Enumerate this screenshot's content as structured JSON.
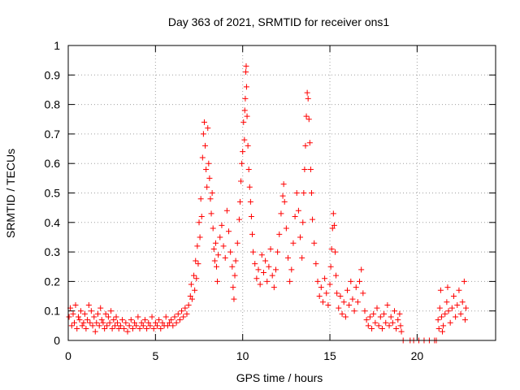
{
  "chart_data": {
    "type": "scatter",
    "title": "Day 363 of 2021, SRMTID for receiver ons1",
    "xlabel": "GPS time / hours",
    "ylabel": "SRMTID / TECUs",
    "xlim": [
      0,
      24.5
    ],
    "ylim": [
      0,
      1
    ],
    "xticks": [
      0,
      5,
      10,
      15,
      20
    ],
    "yticks": [
      0,
      0.1,
      0.2,
      0.3,
      0.4,
      0.5,
      0.6,
      0.7,
      0.8,
      0.9,
      1
    ],
    "xtick_labels": [
      "0",
      "5",
      "10",
      "15",
      "20"
    ],
    "ytick_labels": [
      "0",
      "0.1",
      "0.2",
      "0.3",
      "0.4",
      "0.5",
      "0.6",
      "0.7",
      "0.8",
      "0.9",
      "1"
    ],
    "grid": true,
    "legend": "none",
    "marker": "+",
    "color": "#ff0000",
    "series": [
      {
        "name": "SRMTID ons1",
        "points": [
          [
            0.05,
            0.08
          ],
          [
            0.12,
            0.11
          ],
          [
            0.2,
            0.05
          ],
          [
            0.28,
            0.09
          ],
          [
            0.35,
            0.06
          ],
          [
            0.42,
            0.12
          ],
          [
            0.5,
            0.04
          ],
          [
            0.58,
            0.08
          ],
          [
            0.65,
            0.07
          ],
          [
            0.72,
            0.1
          ],
          [
            0.8,
            0.05
          ],
          [
            0.88,
            0.06
          ],
          [
            0.95,
            0.09
          ],
          [
            1.02,
            0.04
          ],
          [
            1.1,
            0.07
          ],
          [
            1.18,
            0.12
          ],
          [
            1.25,
            0.06
          ],
          [
            1.32,
            0.1
          ],
          [
            1.4,
            0.05
          ],
          [
            1.48,
            0.08
          ],
          [
            1.55,
            0.03
          ],
          [
            1.62,
            0.06
          ],
          [
            1.7,
            0.09
          ],
          [
            1.78,
            0.05
          ],
          [
            1.85,
            0.11
          ],
          [
            1.92,
            0.07
          ],
          [
            2.0,
            0.06
          ],
          [
            2.08,
            0.04
          ],
          [
            2.15,
            0.09
          ],
          [
            2.22,
            0.05
          ],
          [
            2.3,
            0.08
          ],
          [
            2.38,
            0.06
          ],
          [
            2.45,
            0.1
          ],
          [
            2.52,
            0.04
          ],
          [
            2.6,
            0.07
          ],
          [
            2.68,
            0.05
          ],
          [
            2.75,
            0.08
          ],
          [
            2.82,
            0.06
          ],
          [
            2.9,
            0.04
          ],
          [
            3.0,
            0.05
          ],
          [
            3.1,
            0.07
          ],
          [
            3.2,
            0.04
          ],
          [
            3.3,
            0.06
          ],
          [
            3.4,
            0.03
          ],
          [
            3.5,
            0.05
          ],
          [
            3.6,
            0.07
          ],
          [
            3.7,
            0.04
          ],
          [
            3.8,
            0.06
          ],
          [
            3.9,
            0.05
          ],
          [
            4.0,
            0.08
          ],
          [
            4.1,
            0.04
          ],
          [
            4.2,
            0.06
          ],
          [
            4.3,
            0.05
          ],
          [
            4.4,
            0.07
          ],
          [
            4.5,
            0.04
          ],
          [
            4.6,
            0.06
          ],
          [
            4.7,
            0.05
          ],
          [
            4.8,
            0.08
          ],
          [
            4.9,
            0.04
          ],
          [
            5.0,
            0.06
          ],
          [
            5.1,
            0.05
          ],
          [
            5.2,
            0.07
          ],
          [
            5.3,
            0.04
          ],
          [
            5.4,
            0.06
          ],
          [
            5.5,
            0.05
          ],
          [
            5.6,
            0.08
          ],
          [
            5.7,
            0.05
          ],
          [
            5.8,
            0.06
          ],
          [
            5.9,
            0.07
          ],
          [
            6.0,
            0.05
          ],
          [
            6.1,
            0.08
          ],
          [
            6.2,
            0.06
          ],
          [
            6.3,
            0.09
          ],
          [
            6.4,
            0.07
          ],
          [
            6.5,
            0.1
          ],
          [
            6.6,
            0.08
          ],
          [
            6.7,
            0.11
          ],
          [
            6.8,
            0.09
          ],
          [
            6.9,
            0.12
          ],
          [
            7.0,
            0.15
          ],
          [
            7.05,
            0.19
          ],
          [
            7.1,
            0.14
          ],
          [
            7.2,
            0.22
          ],
          [
            7.25,
            0.17
          ],
          [
            7.3,
            0.27
          ],
          [
            7.35,
            0.21
          ],
          [
            7.4,
            0.32
          ],
          [
            7.45,
            0.26
          ],
          [
            7.5,
            0.4
          ],
          [
            7.55,
            0.35
          ],
          [
            7.6,
            0.48
          ],
          [
            7.65,
            0.42
          ],
          [
            7.7,
            0.62
          ],
          [
            7.75,
            0.7
          ],
          [
            7.8,
            0.74
          ],
          [
            7.85,
            0.66
          ],
          [
            7.9,
            0.58
          ],
          [
            7.95,
            0.52
          ],
          [
            8.0,
            0.72
          ],
          [
            8.05,
            0.6
          ],
          [
            8.1,
            0.55
          ],
          [
            8.15,
            0.48
          ],
          [
            8.2,
            0.43
          ],
          [
            8.25,
            0.5
          ],
          [
            8.3,
            0.38
          ],
          [
            8.35,
            0.31
          ],
          [
            8.4,
            0.27
          ],
          [
            8.45,
            0.33
          ],
          [
            8.5,
            0.25
          ],
          [
            8.55,
            0.2
          ],
          [
            8.6,
            0.29
          ],
          [
            8.7,
            0.35
          ],
          [
            8.8,
            0.39
          ],
          [
            8.9,
            0.32
          ],
          [
            9.0,
            0.28
          ],
          [
            9.1,
            0.44
          ],
          [
            9.2,
            0.37
          ],
          [
            9.3,
            0.3
          ],
          [
            9.4,
            0.25
          ],
          [
            9.45,
            0.18
          ],
          [
            9.5,
            0.14
          ],
          [
            9.55,
            0.22
          ],
          [
            9.6,
            0.27
          ],
          [
            9.7,
            0.33
          ],
          [
            9.8,
            0.41
          ],
          [
            9.85,
            0.47
          ],
          [
            9.9,
            0.54
          ],
          [
            9.95,
            0.6
          ],
          [
            10.0,
            0.64
          ],
          [
            10.05,
            0.74
          ],
          [
            10.1,
            0.68
          ],
          [
            10.12,
            0.78
          ],
          [
            10.15,
            0.82
          ],
          [
            10.18,
            0.91
          ],
          [
            10.2,
            0.93
          ],
          [
            10.22,
            0.86
          ],
          [
            10.25,
            0.76
          ],
          [
            10.3,
            0.66
          ],
          [
            10.35,
            0.58
          ],
          [
            10.4,
            0.52
          ],
          [
            10.45,
            0.47
          ],
          [
            10.5,
            0.42
          ],
          [
            10.55,
            0.36
          ],
          [
            10.6,
            0.3
          ],
          [
            10.7,
            0.26
          ],
          [
            10.8,
            0.21
          ],
          [
            10.9,
            0.24
          ],
          [
            11.0,
            0.19
          ],
          [
            11.1,
            0.29
          ],
          [
            11.2,
            0.23
          ],
          [
            11.3,
            0.27
          ],
          [
            11.4,
            0.2
          ],
          [
            11.5,
            0.25
          ],
          [
            11.6,
            0.31
          ],
          [
            11.7,
            0.22
          ],
          [
            11.8,
            0.18
          ],
          [
            11.9,
            0.24
          ],
          [
            12.0,
            0.3
          ],
          [
            12.1,
            0.36
          ],
          [
            12.2,
            0.43
          ],
          [
            12.3,
            0.49
          ],
          [
            12.35,
            0.53
          ],
          [
            12.4,
            0.47
          ],
          [
            12.5,
            0.38
          ],
          [
            12.6,
            0.28
          ],
          [
            12.7,
            0.2
          ],
          [
            12.8,
            0.24
          ],
          [
            12.9,
            0.33
          ],
          [
            13.0,
            0.42
          ],
          [
            13.1,
            0.5
          ],
          [
            13.2,
            0.44
          ],
          [
            13.3,
            0.35
          ],
          [
            13.4,
            0.28
          ],
          [
            13.45,
            0.4
          ],
          [
            13.5,
            0.5
          ],
          [
            13.55,
            0.58
          ],
          [
            13.6,
            0.66
          ],
          [
            13.65,
            0.76
          ],
          [
            13.7,
            0.84
          ],
          [
            13.75,
            0.82
          ],
          [
            13.8,
            0.75
          ],
          [
            13.85,
            0.67
          ],
          [
            13.9,
            0.58
          ],
          [
            13.95,
            0.5
          ],
          [
            14.0,
            0.41
          ],
          [
            14.1,
            0.33
          ],
          [
            14.2,
            0.26
          ],
          [
            14.3,
            0.2
          ],
          [
            14.4,
            0.15
          ],
          [
            14.5,
            0.18
          ],
          [
            14.6,
            0.13
          ],
          [
            14.7,
            0.21
          ],
          [
            14.8,
            0.16
          ],
          [
            14.9,
            0.12
          ],
          [
            15.0,
            0.19
          ],
          [
            15.05,
            0.25
          ],
          [
            15.1,
            0.31
          ],
          [
            15.15,
            0.38
          ],
          [
            15.2,
            0.43
          ],
          [
            15.25,
            0.39
          ],
          [
            15.3,
            0.3
          ],
          [
            15.35,
            0.22
          ],
          [
            15.4,
            0.16
          ],
          [
            15.5,
            0.11
          ],
          [
            15.6,
            0.15
          ],
          [
            15.7,
            0.09
          ],
          [
            15.8,
            0.13
          ],
          [
            15.9,
            0.08
          ],
          [
            16.0,
            0.17
          ],
          [
            16.1,
            0.12
          ],
          [
            16.2,
            0.2
          ],
          [
            16.3,
            0.14
          ],
          [
            16.4,
            0.1
          ],
          [
            16.5,
            0.18
          ],
          [
            16.6,
            0.13
          ],
          [
            16.7,
            0.2
          ],
          [
            16.8,
            0.24
          ],
          [
            16.9,
            0.16
          ],
          [
            17.0,
            0.1
          ],
          [
            17.1,
            0.07
          ],
          [
            17.2,
            0.05
          ],
          [
            17.3,
            0.08
          ],
          [
            17.4,
            0.04
          ],
          [
            17.5,
            0.09
          ],
          [
            17.6,
            0.06
          ],
          [
            17.7,
            0.11
          ],
          [
            17.8,
            0.05
          ],
          [
            17.9,
            0.08
          ],
          [
            18.0,
            0.04
          ],
          [
            18.1,
            0.09
          ],
          [
            18.2,
            0.06
          ],
          [
            18.3,
            0.12
          ],
          [
            18.4,
            0.05
          ],
          [
            18.5,
            0.08
          ],
          [
            18.6,
            0.06
          ],
          [
            18.7,
            0.1
          ],
          [
            18.8,
            0.04
          ],
          [
            18.9,
            0.07
          ],
          [
            19.0,
            0.09
          ],
          [
            19.05,
            0.05
          ],
          [
            19.1,
            0.03
          ],
          [
            19.2,
            0.0
          ],
          [
            19.6,
            0.0
          ],
          [
            19.8,
            0.0
          ],
          [
            20.1,
            0.0
          ],
          [
            20.4,
            0.0
          ],
          [
            20.7,
            0.0
          ],
          [
            21.0,
            0.0
          ],
          [
            21.1,
            0.0
          ],
          [
            21.2,
            0.07
          ],
          [
            21.25,
            0.04
          ],
          [
            21.3,
            0.11
          ],
          [
            21.35,
            0.17
          ],
          [
            21.4,
            0.08
          ],
          [
            21.45,
            0.03
          ],
          [
            21.5,
            0.05
          ],
          [
            21.6,
            0.09
          ],
          [
            21.7,
            0.13
          ],
          [
            21.75,
            0.18
          ],
          [
            21.8,
            0.1
          ],
          [
            21.9,
            0.06
          ],
          [
            22.0,
            0.11
          ],
          [
            22.1,
            0.15
          ],
          [
            22.2,
            0.08
          ],
          [
            22.3,
            0.12
          ],
          [
            22.4,
            0.17
          ],
          [
            22.5,
            0.09
          ],
          [
            22.6,
            0.13
          ],
          [
            22.7,
            0.2
          ],
          [
            22.75,
            0.07
          ],
          [
            22.8,
            0.11
          ]
        ]
      }
    ]
  }
}
